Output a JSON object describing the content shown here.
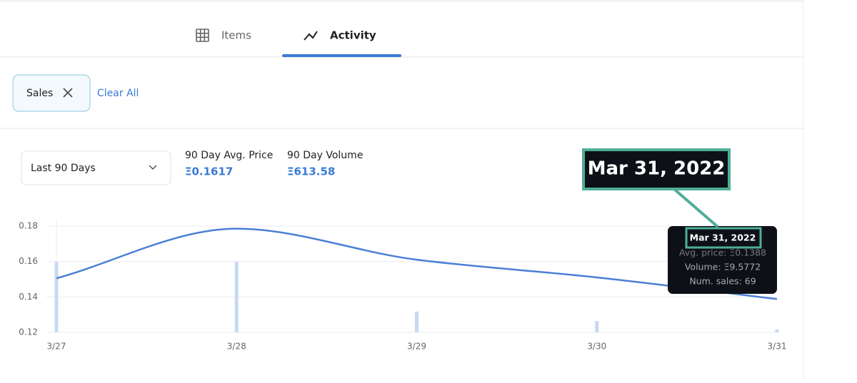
{
  "tabs": [
    "Items",
    "Activity"
  ],
  "filters": {
    "chip": "Sales",
    "clear": "Clear All"
  },
  "range_select": "Last 90 Days",
  "stats": [
    {
      "label": "90 Day Avg. Price",
      "value": "Ξ0.1617"
    },
    {
      "label": "90 Day Volume",
      "value": "Ξ613.58"
    }
  ],
  "callout": "Mar 31, 2022",
  "tooltip": {
    "title": "Mar 31, 2022",
    "lines": [
      "Avg. price: Ξ0.1388",
      "Volume: Ξ9.5772",
      "Num. sales: 69"
    ]
  },
  "chart_data": {
    "type": "line",
    "categories": [
      "3/27",
      "3/28",
      "3/29",
      "3/30",
      "3/31"
    ],
    "series": [
      {
        "type": "bar",
        "axis": "y2",
        "color": "#c6daf1",
        "values": [
          224,
          224,
          66,
          36,
          9.5772
        ]
      },
      {
        "type": "line",
        "color": "#4a7fd4",
        "values": [
          0.1505,
          0.1785,
          0.161,
          0.151,
          0.1388
        ]
      }
    ],
    "ylim": [
      0.12,
      0.184
    ],
    "yticks": [
      0.12,
      0.14,
      0.16,
      0.18
    ],
    "y2lim": [
      0,
      360
    ],
    "grid": true
  }
}
